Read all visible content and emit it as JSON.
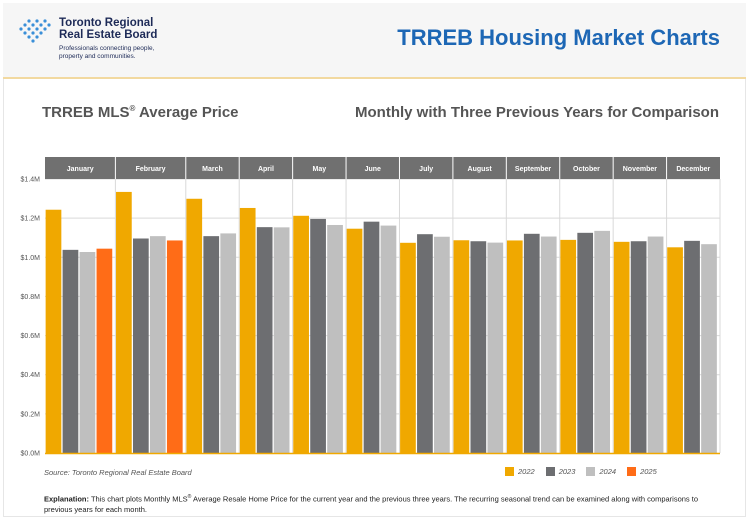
{
  "header": {
    "logo": {
      "name_line1": "Toronto Regional",
      "name_line2": "Real Estate Board",
      "tagline_line1": "Professionals connecting people,",
      "tagline_line2": "property and communities."
    },
    "title": "TRREB Housing Market Charts"
  },
  "chart_title_main": "TRREB MLS",
  "chart_title_reg": "®",
  "chart_title_rest": " Average Price",
  "chart_subtitle": "Monthly with Three Previous Years for Comparison",
  "source": "Source: Toronto Regional Real Estate Board",
  "explanation": {
    "label": "Explanation:",
    "text_part1": " This chart plots Monthly MLS",
    "reg": "®",
    "text_part2": " Average Resale Home Price for the current year and the previous three years. The recurring seasonal trend can be examined along with comparisons to previous years for each month."
  },
  "colors": {
    "2022": "#f0a800",
    "2023": "#6d6e71",
    "2024": "#bfbfbf",
    "2025": "#ff6c17",
    "month_header": "#707070",
    "grid": "#d9d9d9",
    "axis_baseline": "#f0a800"
  },
  "chart_data": {
    "type": "bar",
    "categories": [
      "January",
      "February",
      "March",
      "April",
      "May",
      "June",
      "July",
      "August",
      "September",
      "October",
      "November",
      "December"
    ],
    "y_tick_labels": [
      "$0.0M",
      "$0.2M",
      "$0.4M",
      "$0.6M",
      "$0.8M",
      "$1.0M",
      "$1.2M",
      "$1.4M"
    ],
    "ylim": [
      0,
      1.4
    ],
    "y_unit": "millions of dollars",
    "grid": true,
    "legend_position": "bottom-right",
    "series": [
      {
        "name": "2022",
        "values": [
          1.243,
          1.334,
          1.299,
          1.252,
          1.212,
          1.146,
          1.074,
          1.087,
          1.086,
          1.089,
          1.079,
          1.051
        ]
      },
      {
        "name": "2023",
        "values": [
          1.038,
          1.096,
          1.108,
          1.154,
          1.196,
          1.182,
          1.118,
          1.082,
          1.12,
          1.125,
          1.082,
          1.084
        ]
      },
      {
        "name": "2024",
        "values": [
          1.027,
          1.108,
          1.122,
          1.153,
          1.165,
          1.162,
          1.105,
          1.075,
          1.106,
          1.135,
          1.106,
          1.067
        ]
      },
      {
        "name": "2025",
        "values": [
          1.044,
          1.086,
          null,
          null,
          null,
          null,
          null,
          null,
          null,
          null,
          null,
          null
        ]
      }
    ]
  }
}
